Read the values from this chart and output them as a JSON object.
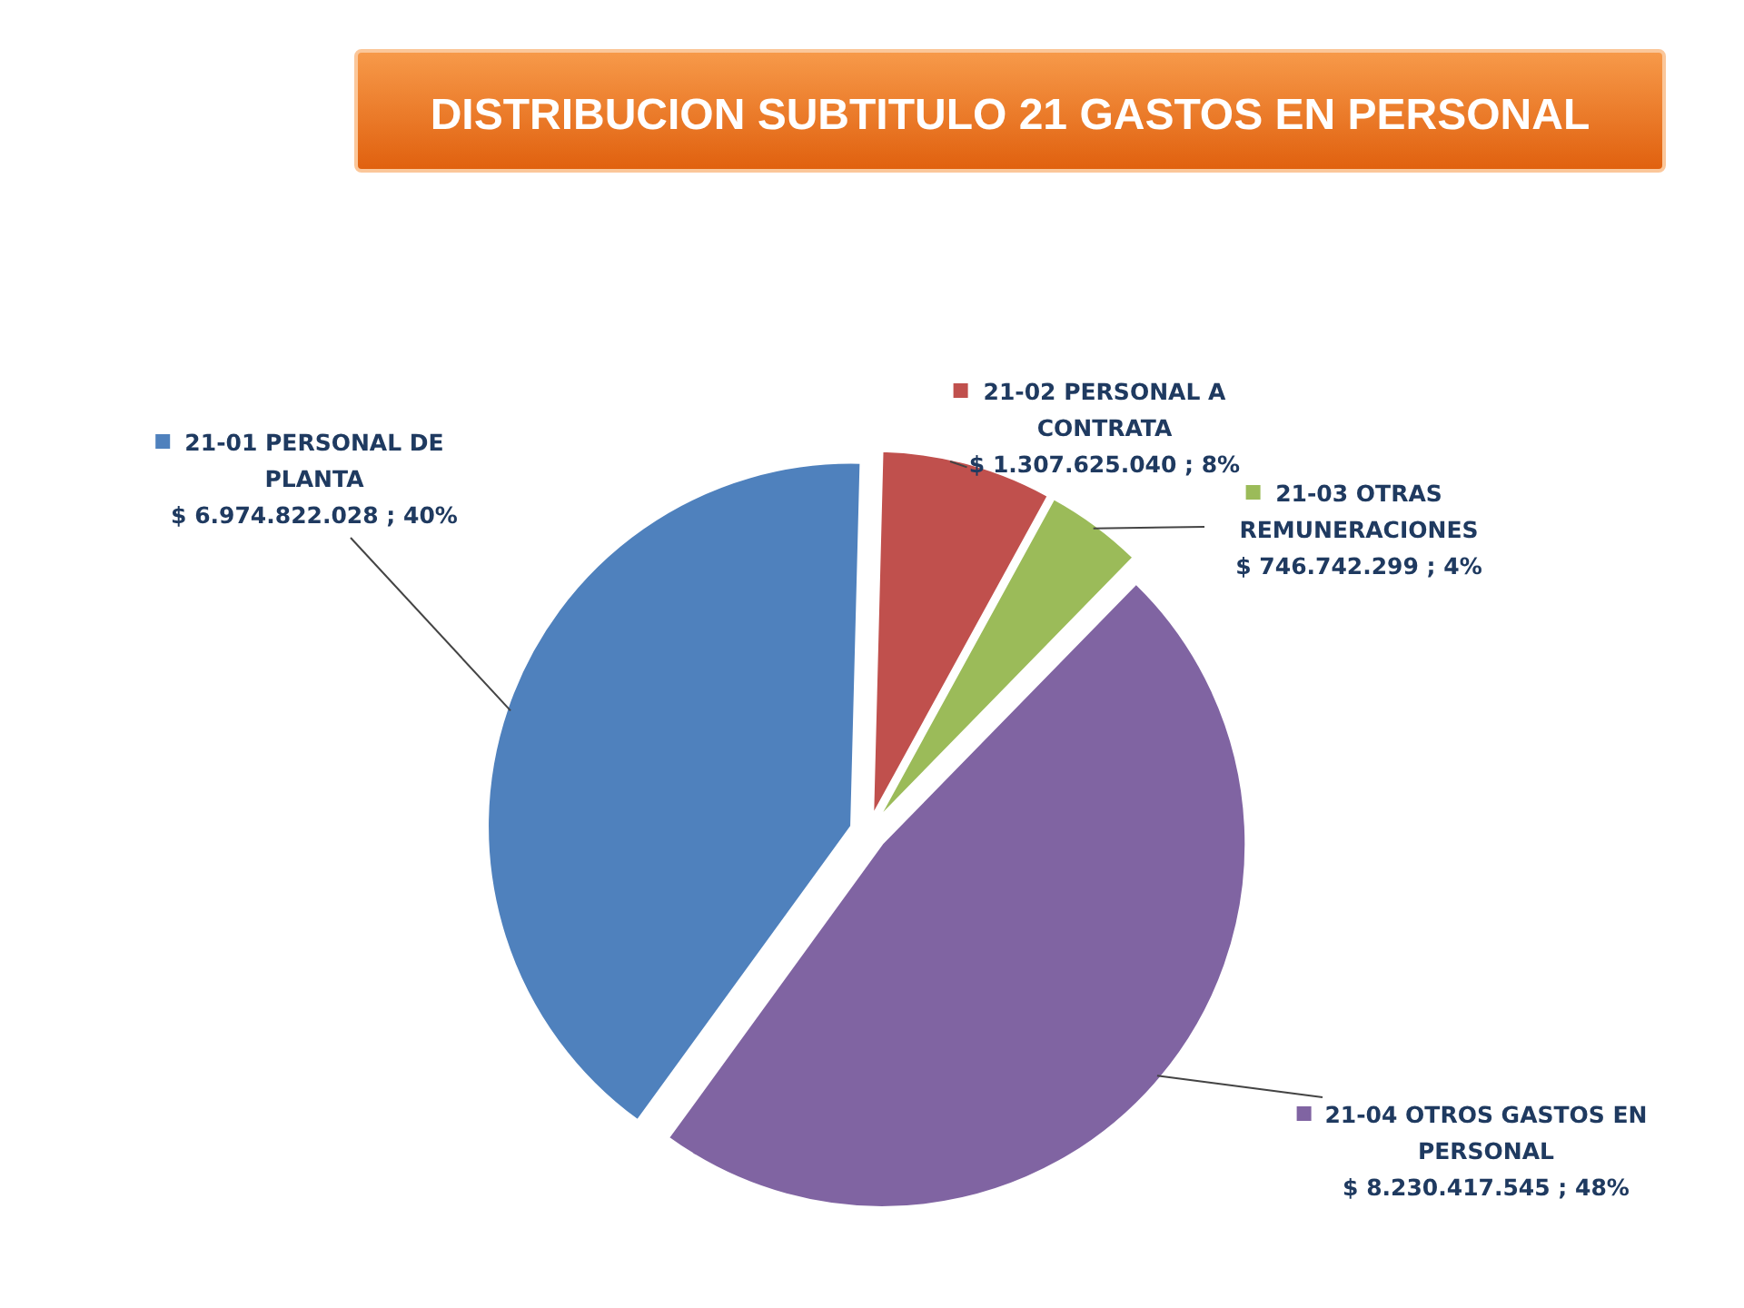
{
  "chart_data": {
    "type": "pie",
    "title": "DISTRIBUCION SUBTITULO 21 GASTOS EN PERSONAL",
    "categories": [
      "21-01  PERSONAL DE PLANTA",
      "21-02 PERSONAL A CONTRATA",
      "21-03 OTRAS REMUNERACIONES",
      "21-04 OTROS GASTOS EN PERSONAL"
    ],
    "values": [
      6974822028,
      1307625040,
      746742299,
      8230417545
    ],
    "value_labels": [
      "$ 6.974.822.028 ; 40%",
      "$ 1.307.625.040 ; 8%",
      "$ 746.742.299 ; 4%",
      "$ 8.230.417.545 ; 48%"
    ],
    "legend": "right",
    "colors": [
      "#4f81bd",
      "#c0504d",
      "#9bbb59",
      "#8064a2"
    ]
  }
}
